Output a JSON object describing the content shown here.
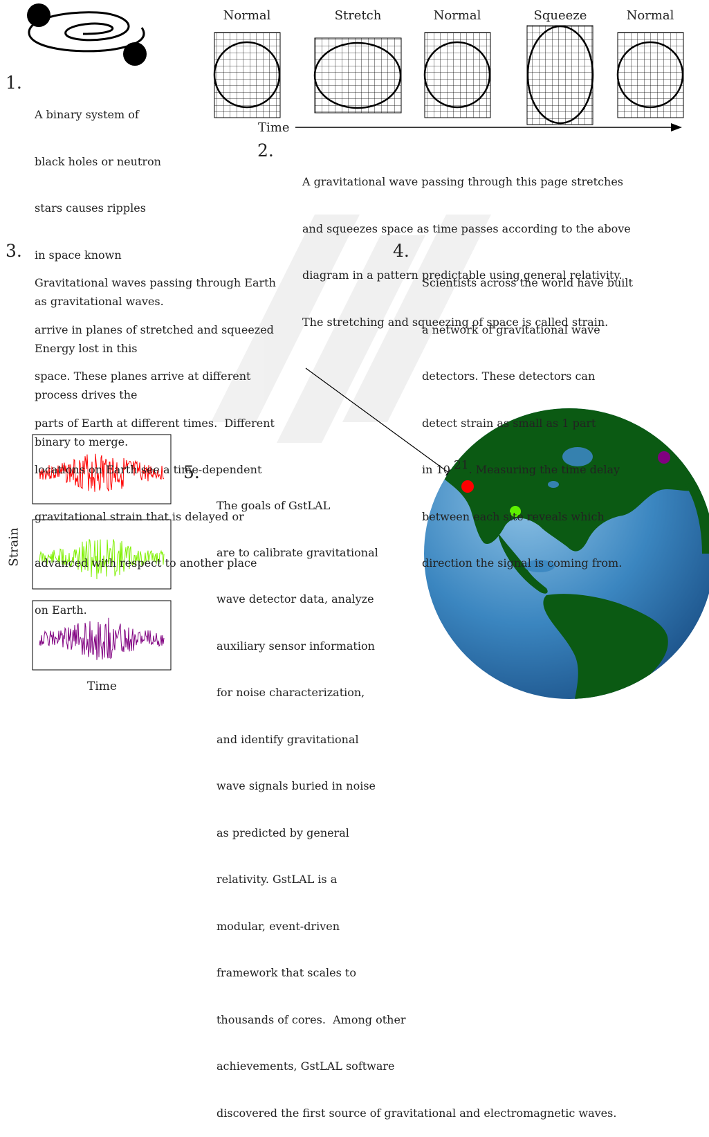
{
  "step1": {
    "number": "1.",
    "lines": [
      "A binary system of",
      "black holes or neutron",
      "stars causes ripples",
      "in space known",
      "as gravitational waves.",
      "Energy lost in this",
      "process drives the",
      "binary to merge."
    ]
  },
  "strain_diagram": {
    "panel_labels": [
      "Normal",
      "Stretch",
      "Normal",
      "Squeeze",
      "Normal"
    ],
    "time_label": "Time"
  },
  "step2": {
    "number": "2.",
    "lines": [
      "A gravitational wave passing through this page stretches",
      "and squeezes space as time passes according to the above",
      "diagram in a pattern predictable using general relativity.",
      "The stretching and squeezing of space is called strain."
    ]
  },
  "step3": {
    "number": "3.",
    "lines": [
      "Gravitational waves passing through Earth",
      "arrive in planes of stretched and squeezed",
      "space. These planes arrive at different",
      "parts of Earth at different times.  Different",
      "locations on Earth see a time-dependent",
      "gravitational strain that is delayed or",
      "advanced with respect to another place",
      "on Earth."
    ]
  },
  "step4": {
    "number": "4.",
    "lines": [
      "Scientists across the world have built",
      "a network of gravitational wave",
      "detectors. These detectors can",
      "detect strain as small as 1 part"
    ],
    "exp_prefix": "in 10 ",
    "exp_power": "21",
    "exp_suffix": ". Measuring the time delay",
    "lines_after": [
      "between each site reveals which",
      "direction the signal is coming from."
    ]
  },
  "signals": {
    "ylabel": "Strain",
    "xlabel": "Time",
    "traces": [
      {
        "color": "#ff0000",
        "seed": 3
      },
      {
        "color": "#7ff000",
        "seed": 11
      },
      {
        "color": "#800080",
        "seed": 29
      }
    ]
  },
  "step5": {
    "number": "5.",
    "lines": [
      "The goals of GstLAL",
      "are to calibrate gravitational",
      "wave detector data, analyze",
      "auxiliary sensor information",
      "for noise characterization,",
      "and identify gravitational",
      "wave signals buried in noise",
      "as predicted by general",
      "relativity. GstLAL is a",
      "modular, event-driven",
      "framework that scales to",
      "thousands of cores.  Among other",
      "achievements, GstLAL software",
      "discovered the first source of gravitational and electromagnetic waves."
    ]
  },
  "detectors": [
    {
      "name": "red-detector",
      "color": "#ff0000"
    },
    {
      "name": "green-detector",
      "color": "#5ef000"
    },
    {
      "name": "purple-detector",
      "color": "#800080"
    }
  ],
  "colors": {
    "ocean": "#3a86c0",
    "land": "#0b5a13",
    "ink": "#222222"
  }
}
